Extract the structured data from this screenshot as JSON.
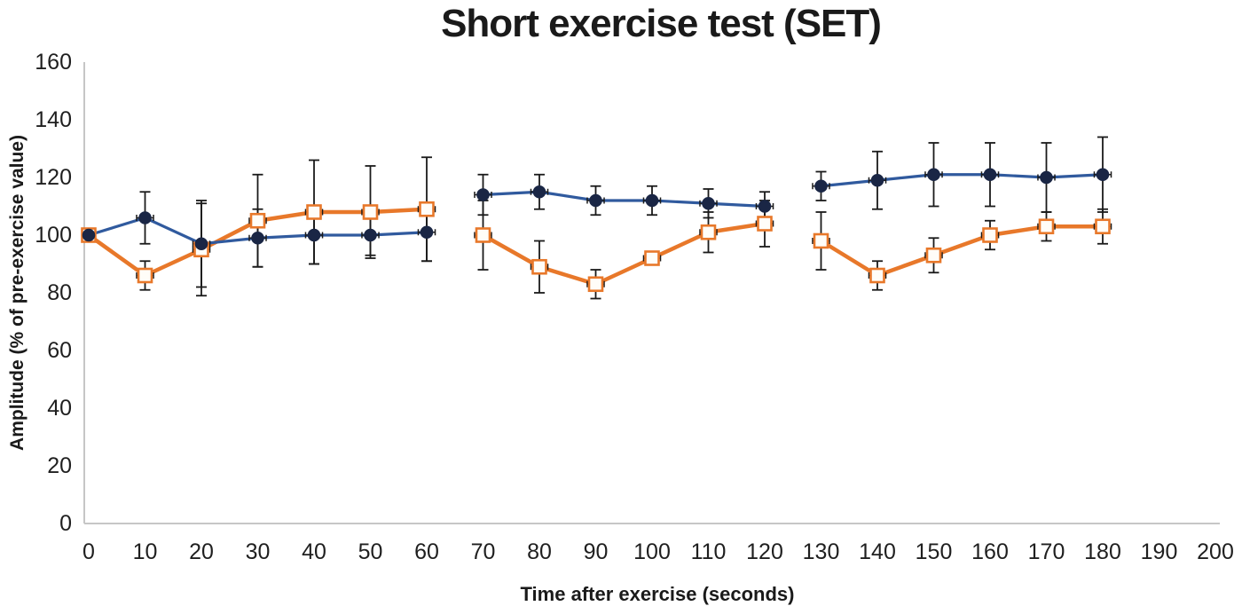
{
  "chart_data": {
    "type": "line",
    "title": "Short exercise test (SET)",
    "xlabel": "Time after exercise (seconds)",
    "ylabel": "Amplitude (% of pre-exercise value)",
    "xlim": [
      0,
      200
    ],
    "ylim": [
      0,
      160
    ],
    "x_ticks": [
      0,
      10,
      20,
      30,
      40,
      50,
      60,
      70,
      80,
      90,
      100,
      110,
      120,
      130,
      140,
      150,
      160,
      170,
      180,
      190,
      200
    ],
    "y_ticks": [
      0,
      20,
      40,
      60,
      80,
      100,
      120,
      140,
      160
    ],
    "grid": false,
    "legend": "none",
    "axis_line_color": "#c6c6c6",
    "error_bar_color": "#1a1a1a",
    "x_error_halfwidth_seconds": 1.5,
    "series": [
      {
        "name": "orange series (open square markers)",
        "marker": "square",
        "line_color": "#e8782a",
        "marker_fill": "#fffdf8",
        "marker_border": "#e8782a",
        "segments": [
          {
            "x": [
              0,
              10,
              20,
              30,
              40,
              50,
              60
            ],
            "y": [
              100,
              86,
              95,
              105,
              108,
              108,
              109
            ],
            "err": [
              0,
              5,
              16,
              16,
              18,
              16,
              18
            ]
          },
          {
            "x": [
              70,
              80,
              90,
              100,
              110,
              120
            ],
            "y": [
              100,
              89,
              83,
              92,
              101,
              104
            ],
            "err": [
              12,
              9,
              5,
              2,
              7,
              8
            ]
          },
          {
            "x": [
              130,
              140,
              150,
              160,
              170,
              180
            ],
            "y": [
              98,
              86,
              93,
              100,
              103,
              103
            ],
            "err": [
              10,
              5,
              6,
              5,
              5,
              6
            ]
          }
        ]
      },
      {
        "name": "blue series (filled navy circle markers)",
        "marker": "circle",
        "line_color": "#305a9e",
        "marker_fill": "#1a2645",
        "marker_border": "#1a2645",
        "segments": [
          {
            "x": [
              0,
              10,
              20,
              30,
              40,
              50,
              60
            ],
            "y": [
              100,
              106,
              97,
              99,
              100,
              100,
              101
            ],
            "err": [
              0,
              9,
              15,
              10,
              10,
              7,
              10
            ]
          },
          {
            "x": [
              70,
              80,
              90,
              100,
              110,
              120
            ],
            "y": [
              114,
              115,
              112,
              112,
              111,
              110
            ],
            "err": [
              7,
              6,
              5,
              5,
              5,
              5
            ]
          },
          {
            "x": [
              130,
              140,
              150,
              160,
              170,
              180
            ],
            "y": [
              117,
              119,
              121,
              121,
              120,
              121
            ],
            "err": [
              5,
              10,
              11,
              11,
              12,
              13
            ]
          }
        ]
      }
    ]
  }
}
